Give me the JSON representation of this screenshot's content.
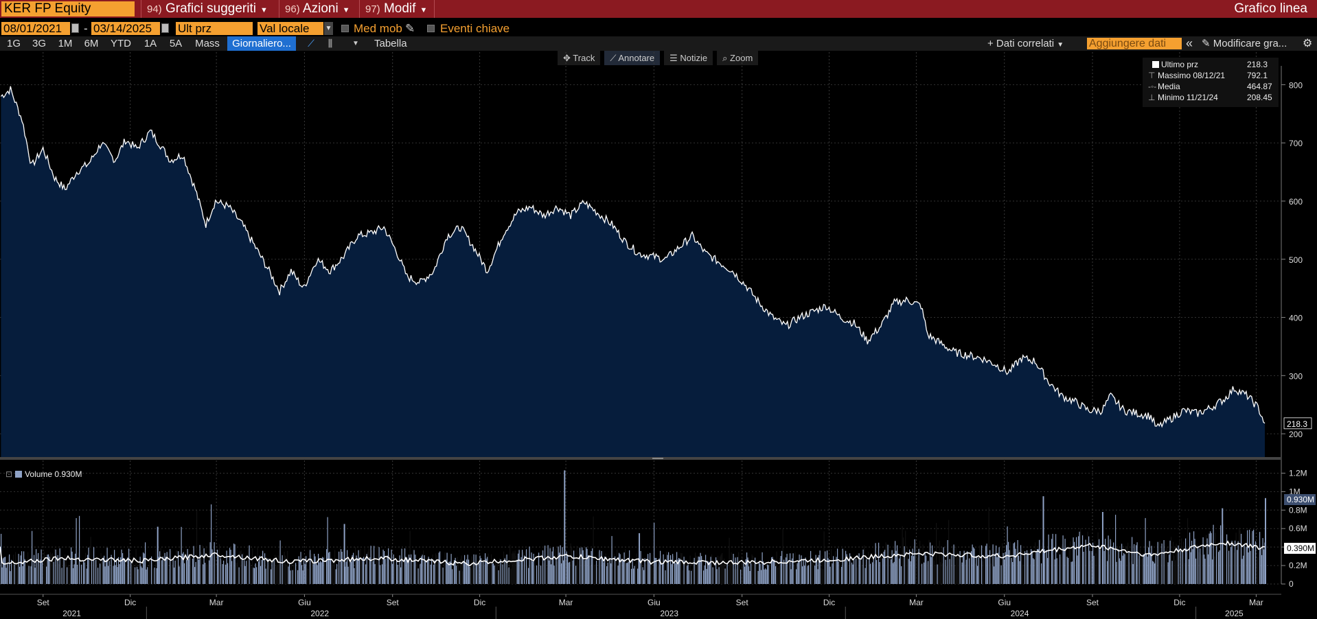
{
  "toolbar": {
    "ticker": "KER FP Equity",
    "menus": [
      {
        "num": "94)",
        "label": "Grafici suggeriti"
      },
      {
        "num": "96)",
        "label": "Azioni"
      },
      {
        "num": "97)",
        "label": "Modif"
      }
    ],
    "chart_title": "Grafico linea"
  },
  "controls": {
    "start_date": "08/01/2021",
    "end_date": "03/14/2025",
    "dash": "-",
    "field": "Ult prz",
    "currency": "Val locale",
    "moving_avg": "Med mob",
    "key_events": "Eventi chiave"
  },
  "periods": [
    {
      "label": "1G"
    },
    {
      "label": "3G"
    },
    {
      "label": "1M"
    },
    {
      "label": "6M"
    },
    {
      "label": "YTD"
    },
    {
      "label": "1A"
    },
    {
      "label": "5A"
    },
    {
      "label": "Mass"
    },
    {
      "label": "Giornaliero..."
    }
  ],
  "table_label": "Tabella",
  "related_data": "+ Dati correlati",
  "add_data_placeholder": "Aggiungere dati",
  "edit_chart": "Modificare gra...",
  "chart_tools": {
    "track": "Track",
    "annotate": "Annotare",
    "news": "Notizie",
    "zoom": "Zoom"
  },
  "legend": {
    "last": {
      "label": "Ultimo prz",
      "value": "218.3"
    },
    "high": {
      "label": "Massimo 08/12/21",
      "value": "792.1"
    },
    "avg": {
      "label": "Media",
      "value": "464.87"
    },
    "low": {
      "label": "Minimo 11/21/24",
      "value": "208.45"
    }
  },
  "volume_legend": "Volume 0.930M",
  "colors": {
    "accent": "#f5a030",
    "topbar": "#8b1a21",
    "area": "#061d3c",
    "volume": "#8fa2c6",
    "selected": "#1f6fd1"
  },
  "chart_data": {
    "type": "line",
    "price": {
      "name": "Ultimo prz",
      "ylim": [
        160,
        830
      ],
      "yticks": [
        200,
        300,
        400,
        500,
        600,
        700,
        800
      ],
      "last_label": "218.3",
      "points": [
        [
          "2021-08-02",
          780
        ],
        [
          "2021-08-12",
          792
        ],
        [
          "2021-08-24",
          740
        ],
        [
          "2021-09-03",
          660
        ],
        [
          "2021-09-15",
          690
        ],
        [
          "2021-09-27",
          640
        ],
        [
          "2021-10-08",
          620
        ],
        [
          "2021-10-20",
          650
        ],
        [
          "2021-11-02",
          665
        ],
        [
          "2021-11-15",
          700
        ],
        [
          "2021-11-29",
          670
        ],
        [
          "2021-12-10",
          705
        ],
        [
          "2021-12-22",
          690
        ],
        [
          "2022-01-05",
          720
        ],
        [
          "2022-01-14",
          700
        ],
        [
          "2022-01-26",
          670
        ],
        [
          "2022-02-08",
          680
        ],
        [
          "2022-02-21",
          620
        ],
        [
          "2022-03-04",
          560
        ],
        [
          "2022-03-14",
          600
        ],
        [
          "2022-03-28",
          590
        ],
        [
          "2022-04-11",
          560
        ],
        [
          "2022-04-25",
          520
        ],
        [
          "2022-05-09",
          480
        ],
        [
          "2022-05-20",
          445
        ],
        [
          "2022-06-01",
          480
        ],
        [
          "2022-06-14",
          450
        ],
        [
          "2022-06-28",
          500
        ],
        [
          "2022-07-12",
          480
        ],
        [
          "2022-07-26",
          505
        ],
        [
          "2022-08-09",
          540
        ],
        [
          "2022-08-23",
          545
        ],
        [
          "2022-09-06",
          555
        ],
        [
          "2022-09-20",
          510
        ],
        [
          "2022-09-30",
          470
        ],
        [
          "2022-10-14",
          460
        ],
        [
          "2022-10-28",
          480
        ],
        [
          "2022-11-11",
          540
        ],
        [
          "2022-11-25",
          555
        ],
        [
          "2022-12-09",
          520
        ],
        [
          "2022-12-23",
          480
        ],
        [
          "2023-01-09",
          545
        ],
        [
          "2023-01-23",
          580
        ],
        [
          "2023-02-06",
          590
        ],
        [
          "2023-02-20",
          575
        ],
        [
          "2023-03-06",
          590
        ],
        [
          "2023-03-20",
          575
        ],
        [
          "2023-04-03",
          598
        ],
        [
          "2023-04-17",
          580
        ],
        [
          "2023-05-02",
          560
        ],
        [
          "2023-05-16",
          530
        ],
        [
          "2023-05-30",
          510
        ],
        [
          "2023-06-13",
          505
        ],
        [
          "2023-06-27",
          500
        ],
        [
          "2023-07-11",
          520
        ],
        [
          "2023-07-25",
          540
        ],
        [
          "2023-08-08",
          510
        ],
        [
          "2023-08-22",
          495
        ],
        [
          "2023-09-05",
          480
        ],
        [
          "2023-09-19",
          455
        ],
        [
          "2023-10-03",
          425
        ],
        [
          "2023-10-17",
          400
        ],
        [
          "2023-10-31",
          385
        ],
        [
          "2023-11-14",
          400
        ],
        [
          "2023-11-28",
          410
        ],
        [
          "2023-12-12",
          420
        ],
        [
          "2023-12-27",
          400
        ],
        [
          "2024-01-10",
          390
        ],
        [
          "2024-01-24",
          360
        ],
        [
          "2024-02-07",
          385
        ],
        [
          "2024-02-21",
          425
        ],
        [
          "2024-03-06",
          430
        ],
        [
          "2024-03-20",
          420
        ],
        [
          "2024-03-27",
          370
        ],
        [
          "2024-04-10",
          355
        ],
        [
          "2024-04-24",
          340
        ],
        [
          "2024-05-08",
          335
        ],
        [
          "2024-05-22",
          330
        ],
        [
          "2024-06-05",
          320
        ],
        [
          "2024-06-19",
          305
        ],
        [
          "2024-07-03",
          330
        ],
        [
          "2024-07-17",
          325
        ],
        [
          "2024-07-31",
          290
        ],
        [
          "2024-08-14",
          265
        ],
        [
          "2024-08-28",
          255
        ],
        [
          "2024-09-11",
          240
        ],
        [
          "2024-09-25",
          240
        ],
        [
          "2024-10-04",
          265
        ],
        [
          "2024-10-18",
          240
        ],
        [
          "2024-11-01",
          235
        ],
        [
          "2024-11-15",
          230
        ],
        [
          "2024-11-21",
          210
        ],
        [
          "2024-12-05",
          225
        ],
        [
          "2024-12-19",
          240
        ],
        [
          "2025-01-03",
          235
        ],
        [
          "2025-01-17",
          245
        ],
        [
          "2025-01-31",
          260
        ],
        [
          "2025-02-10",
          278
        ],
        [
          "2025-02-24",
          265
        ],
        [
          "2025-03-07",
          245
        ],
        [
          "2025-03-14",
          218
        ]
      ]
    },
    "volume": {
      "name": "Volume",
      "last_label": "0.930M",
      "ma_label": "0.390M",
      "ylim": [
        0,
        1.3
      ],
      "yticks": [
        {
          "v": 0,
          "label": "0"
        },
        {
          "v": 0.2,
          "label": "0.2M"
        },
        {
          "v": 0.4,
          "label": "0.4M"
        },
        {
          "v": 0.6,
          "label": "0.6M"
        },
        {
          "v": 0.8,
          "label": "0.8M"
        },
        {
          "v": 1.0,
          "label": "1M"
        },
        {
          "v": 1.2,
          "label": "1.2M"
        }
      ],
      "spikes": [
        [
          "2023-03-13",
          1.23
        ],
        [
          "2023-05-30",
          0.55
        ],
        [
          "2024-07-25",
          0.95
        ],
        [
          "2024-09-25",
          0.78
        ],
        [
          "2025-01-28",
          0.82
        ],
        [
          "2025-03-14",
          0.93
        ],
        [
          "2022-01-12",
          0.62
        ],
        [
          "2022-07-26",
          0.65
        ]
      ],
      "ma": [
        [
          "2021-08-02",
          0.22
        ],
        [
          "2021-10-01",
          0.28
        ],
        [
          "2022-01-01",
          0.25
        ],
        [
          "2022-03-15",
          0.32
        ],
        [
          "2022-06-01",
          0.24
        ],
        [
          "2022-09-01",
          0.28
        ],
        [
          "2022-12-01",
          0.22
        ],
        [
          "2023-03-15",
          0.3
        ],
        [
          "2023-06-15",
          0.24
        ],
        [
          "2023-09-15",
          0.23
        ],
        [
          "2023-12-15",
          0.26
        ],
        [
          "2024-03-15",
          0.33
        ],
        [
          "2024-06-15",
          0.3
        ],
        [
          "2024-09-15",
          0.42
        ],
        [
          "2024-11-15",
          0.31
        ],
        [
          "2025-01-30",
          0.45
        ],
        [
          "2025-03-14",
          0.39
        ]
      ]
    },
    "xaxis": {
      "months": [
        [
          "2021-09-15",
          "Set"
        ],
        [
          "2021-12-15",
          "Dic"
        ],
        [
          "2022-03-15",
          "Mar"
        ],
        [
          "2022-06-15",
          "Giu"
        ],
        [
          "2022-09-15",
          "Set"
        ],
        [
          "2022-12-15",
          "Dic"
        ],
        [
          "2023-03-15",
          "Mar"
        ],
        [
          "2023-06-15",
          "Giu"
        ],
        [
          "2023-09-15",
          "Set"
        ],
        [
          "2023-12-15",
          "Dic"
        ],
        [
          "2024-03-15",
          "Mar"
        ],
        [
          "2024-06-15",
          "Giu"
        ],
        [
          "2024-09-15",
          "Set"
        ],
        [
          "2024-12-15",
          "Dic"
        ],
        [
          "2025-03-05",
          "Mar"
        ]
      ],
      "years": [
        [
          "2021-10-15",
          "2021"
        ],
        [
          "2022-07-01",
          "2022"
        ],
        [
          "2023-07-01",
          "2023"
        ],
        [
          "2024-07-01",
          "2024"
        ],
        [
          "2025-02-10",
          "2025"
        ]
      ]
    }
  }
}
